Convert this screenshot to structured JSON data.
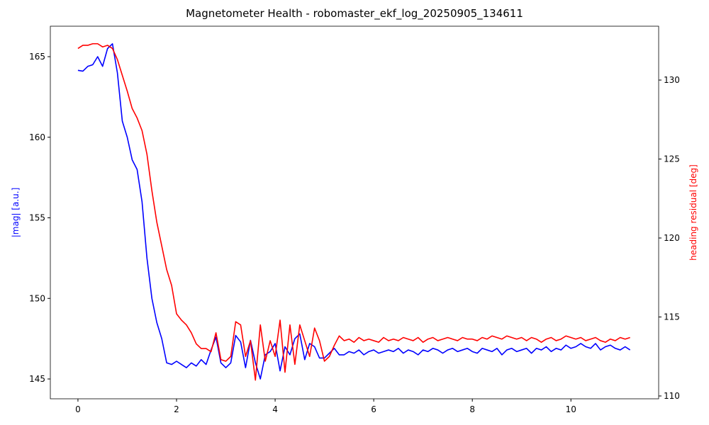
{
  "chart_data": {
    "type": "line",
    "title": "Magnetometer Health - robomaster_ekf_log_20250905_134611",
    "ylabel": "|mag| [a.u.]",
    "y2label": "heading residual [deg]",
    "ylabel_color": "blue",
    "y2label_color": "red",
    "xlim": [
      -0.56,
      11.78
    ],
    "xticks": [
      0,
      2,
      4,
      6,
      8,
      10
    ],
    "ylim": [
      143.77,
      166.89
    ],
    "yticks": [
      145,
      150,
      155,
      160,
      165
    ],
    "y2lim": [
      109.82,
      133.41
    ],
    "y2ticks": [
      110,
      115,
      120,
      125,
      130
    ],
    "x": [
      0,
      0.1,
      0.2,
      0.3,
      0.4,
      0.5,
      0.6,
      0.7,
      0.8,
      0.9,
      1,
      1.1,
      1.2,
      1.3,
      1.4,
      1.5,
      1.6,
      1.7,
      1.8,
      1.9,
      2,
      2.1,
      2.2,
      2.3,
      2.4,
      2.5,
      2.6,
      2.7,
      2.8,
      2.9,
      3,
      3.1,
      3.2,
      3.3,
      3.4,
      3.5,
      3.6,
      3.7,
      3.8,
      3.9,
      4,
      4.1,
      4.2,
      4.3,
      4.4,
      4.5,
      4.6,
      4.7,
      4.8,
      4.9,
      5,
      5.1,
      5.2,
      5.3,
      5.4,
      5.5,
      5.6,
      5.7,
      5.8,
      5.9,
      6,
      6.1,
      6.2,
      6.3,
      6.4,
      6.5,
      6.6,
      6.7,
      6.8,
      6.9,
      7,
      7.1,
      7.2,
      7.3,
      7.4,
      7.5,
      7.6,
      7.7,
      7.8,
      7.9,
      8,
      8.1,
      8.2,
      8.3,
      8.4,
      8.5,
      8.6,
      8.7,
      8.8,
      8.9,
      9,
      9.1,
      9.2,
      9.3,
      9.4,
      9.5,
      9.6,
      9.7,
      9.8,
      9.9,
      10,
      10.1,
      10.2,
      10.3,
      10.4,
      10.5,
      10.6,
      10.7,
      10.8,
      10.9,
      11,
      11.1,
      11.2
    ],
    "series": [
      {
        "color": "blue",
        "axis": "y",
        "values": [
          164.15,
          164.1,
          164.4,
          164.5,
          165.0,
          164.4,
          165.5,
          165.8,
          164.0,
          161.0,
          160.0,
          158.6,
          158.0,
          156.0,
          152.5,
          150.0,
          148.5,
          147.5,
          146.0,
          145.9,
          146.1,
          145.9,
          145.7,
          146.0,
          145.8,
          146.2,
          145.9,
          146.8,
          147.6,
          146.0,
          145.7,
          146.0,
          147.7,
          147.3,
          145.7,
          147.4,
          146.0,
          145.0,
          146.5,
          146.7,
          147.2,
          145.5,
          147.0,
          146.5,
          147.5,
          147.8,
          146.2,
          147.2,
          147.0,
          146.3,
          146.3,
          146.6,
          146.9,
          146.5,
          146.5,
          146.7,
          146.6,
          146.8,
          146.5,
          146.7,
          146.8,
          146.6,
          146.7,
          146.8,
          146.7,
          146.9,
          146.6,
          146.8,
          146.7,
          146.5,
          146.8,
          146.7,
          146.9,
          146.8,
          146.6,
          146.8,
          146.9,
          146.7,
          146.8,
          146.9,
          146.7,
          146.6,
          146.9,
          146.8,
          146.7,
          146.9,
          146.5,
          146.8,
          146.9,
          146.7,
          146.8,
          146.9,
          146.6,
          146.9,
          146.8,
          147.0,
          146.7,
          146.9,
          146.8,
          147.1,
          146.9,
          147.0,
          147.2,
          147.0,
          146.9,
          147.2,
          146.8,
          147.0,
          147.1,
          146.9,
          146.8,
          147.0,
          146.8
        ]
      },
      {
        "color": "red",
        "axis": "y2",
        "values": [
          132.0,
          132.2,
          132.2,
          132.3,
          132.3,
          132.1,
          132.2,
          132.0,
          131.3,
          130.3,
          129.3,
          128.2,
          127.6,
          126.8,
          125.3,
          123.0,
          121.0,
          119.5,
          118.0,
          117.0,
          115.2,
          114.8,
          114.5,
          114.0,
          113.3,
          113.0,
          113.0,
          112.8,
          114.0,
          112.3,
          112.2,
          112.5,
          114.7,
          114.5,
          112.5,
          113.5,
          111.0,
          114.5,
          112.2,
          113.5,
          112.5,
          114.8,
          111.5,
          114.5,
          112.0,
          114.5,
          113.5,
          112.5,
          114.3,
          113.5,
          112.2,
          112.5,
          113.2,
          113.8,
          113.5,
          113.6,
          113.4,
          113.7,
          113.5,
          113.6,
          113.5,
          113.4,
          113.7,
          113.5,
          113.6,
          113.5,
          113.7,
          113.6,
          113.5,
          113.7,
          113.4,
          113.6,
          113.7,
          113.5,
          113.6,
          113.7,
          113.6,
          113.5,
          113.7,
          113.6,
          113.6,
          113.5,
          113.7,
          113.6,
          113.8,
          113.7,
          113.6,
          113.8,
          113.7,
          113.6,
          113.7,
          113.5,
          113.7,
          113.6,
          113.4,
          113.6,
          113.7,
          113.5,
          113.6,
          113.8,
          113.7,
          113.6,
          113.7,
          113.5,
          113.6,
          113.7,
          113.5,
          113.4,
          113.6,
          113.5,
          113.7,
          113.6,
          113.7
        ]
      }
    ]
  }
}
